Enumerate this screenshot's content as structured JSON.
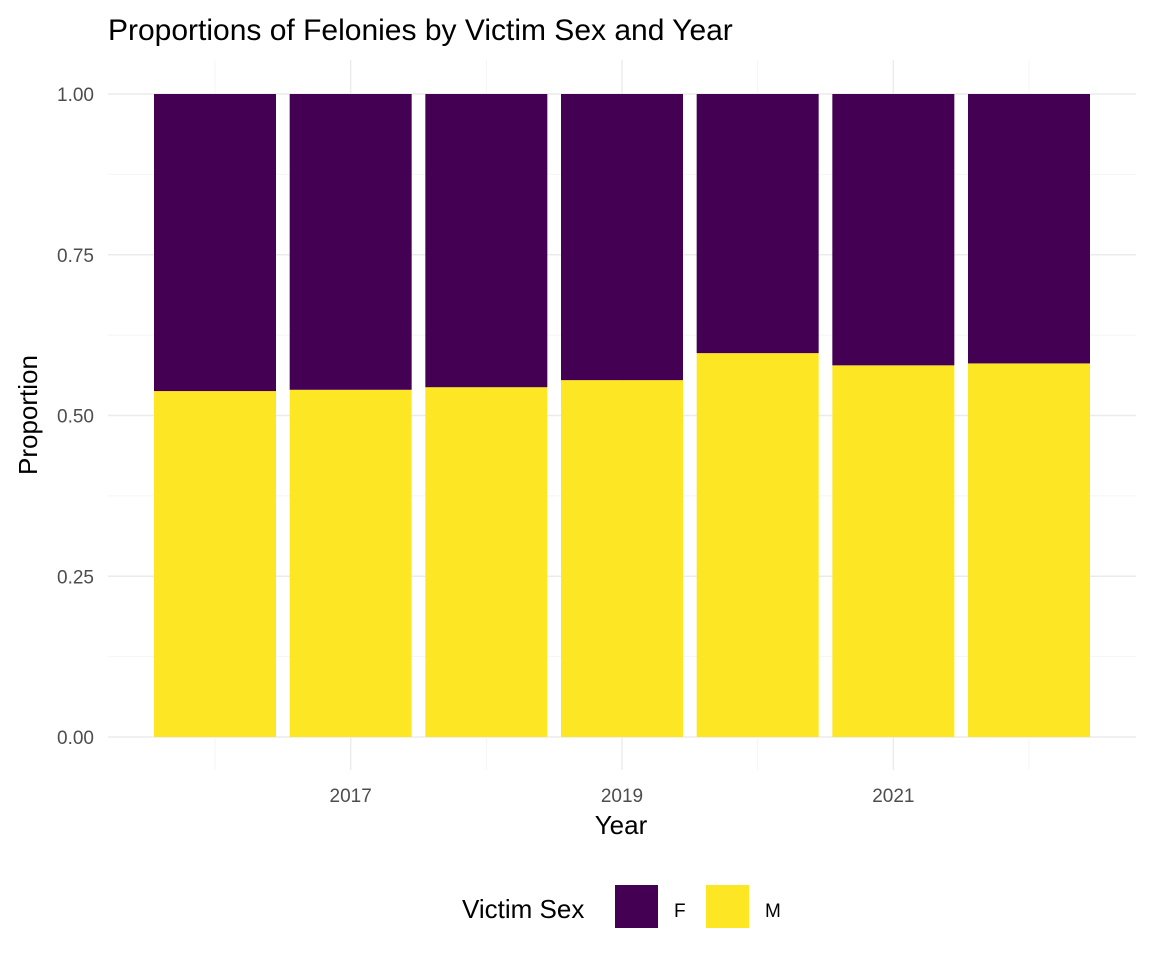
{
  "chart_data": {
    "type": "bar",
    "stacked": true,
    "title": "Proportions of Felonies by Victim Sex and Year",
    "xlabel": "Year",
    "ylabel": "Proportion",
    "x": [
      2016,
      2017,
      2018,
      2019,
      2020,
      2021,
      2022
    ],
    "x_tick_labels": [
      "2017",
      "2019",
      "2021"
    ],
    "y_tick_labels": [
      "0.00",
      "0.25",
      "0.50",
      "0.75",
      "1.00"
    ],
    "ylim": [
      0,
      1
    ],
    "grid": true,
    "legend": {
      "title": "Victim Sex",
      "position": "bottom"
    },
    "series": [
      {
        "name": "M",
        "color": "#fde725",
        "values": [
          0.538,
          0.54,
          0.544,
          0.555,
          0.597,
          0.578,
          0.581
        ]
      },
      {
        "name": "F",
        "color": "#440154",
        "values": [
          0.462,
          0.46,
          0.456,
          0.445,
          0.403,
          0.422,
          0.419
        ]
      }
    ],
    "legend_order": [
      "F",
      "M"
    ]
  }
}
